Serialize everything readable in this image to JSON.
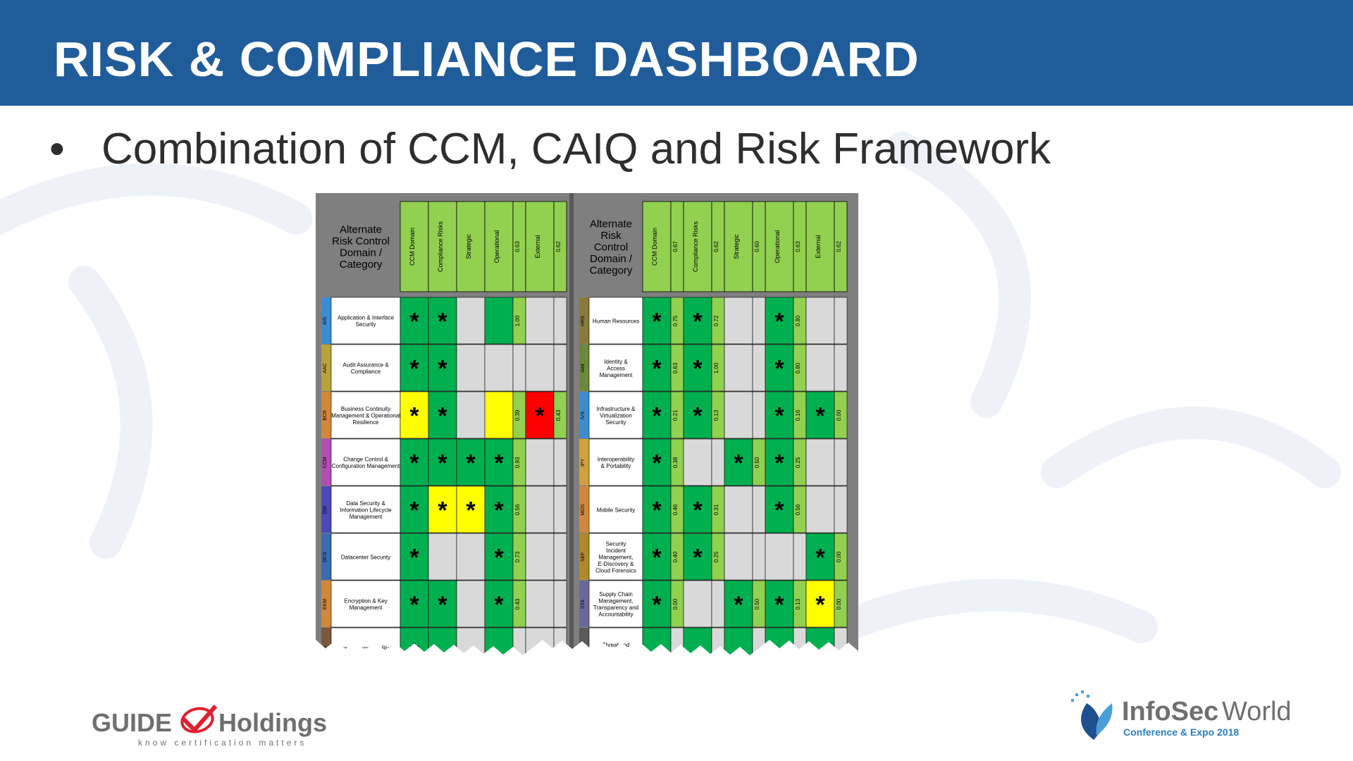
{
  "title": "RISK & COMPLIANCE DASHBOARD",
  "bullet": "Combination of CCM, CAIQ and Risk Framework",
  "matrix": {
    "header_label": "Alternate Risk Control Domain / Category",
    "columns": [
      "CCM Domain",
      "Compliance Risks",
      "Strategic",
      "Operational",
      "External"
    ],
    "header_values_left": [
      "",
      "",
      "",
      "0.63",
      "0.62"
    ],
    "header_values_right": [
      "0.67",
      "0.62",
      "0.60",
      "0.63",
      "0.62"
    ],
    "colors": {
      "green": "#00b050",
      "light_green": "#92d050",
      "yellow": "#ffff00",
      "red": "#ff0000",
      "gray": "#d9d9d9",
      "frame": "#7f7f7f"
    },
    "left": [
      {
        "code": "AIS",
        "code_color": "#3c8dd0",
        "name": "Application & Interface Security",
        "cells": [
          "G*",
          "G*",
          "X",
          "G",
          "X"
        ],
        "score": "1.00"
      },
      {
        "code": "AAC",
        "code_color": "#b9a23c",
        "name": "Audit Assurance & Compliance",
        "cells": [
          "G*",
          "G*",
          "X",
          "X",
          "X"
        ],
        "score": ""
      },
      {
        "code": "BCR",
        "code_color": "#d0883c",
        "name": "Business Continuity Management & Operational Resilience",
        "cells": [
          "Y*",
          "G*",
          "X",
          "Y",
          "R*"
        ],
        "score": "0.39",
        "score2": "0.43"
      },
      {
        "code": "CCM",
        "code_color": "#b04fb0",
        "name": "Change Control & Configuration Management",
        "cells": [
          "G*",
          "G*",
          "G*",
          "G*",
          "X"
        ],
        "score": "0.93"
      },
      {
        "code": "DSI",
        "code_color": "#4a4ab8",
        "name": "Data Security & Information Lifecycle Management",
        "cells": [
          "G*",
          "Y*",
          "Y*",
          "G*",
          "X"
        ],
        "score": "0.56"
      },
      {
        "code": "DCS",
        "code_color": "#3c6ab0",
        "name": "Datacenter Security",
        "cells": [
          "G*",
          "X",
          "X",
          "G*",
          "X"
        ],
        "score": "0.73"
      },
      {
        "code": "EKM",
        "code_color": "#d0883c",
        "name": "Encryption & Key Management",
        "cells": [
          "G*",
          "G*",
          "X",
          "G*",
          "X"
        ],
        "score": "0.43"
      },
      {
        "code": "GRM",
        "code_color": "#7a5a3a",
        "name": "Governance and Risk Management",
        "cells": [
          "G*",
          "G",
          "X",
          "G",
          "X"
        ],
        "score": ""
      }
    ],
    "right": [
      {
        "code": "HRS",
        "code_color": "#8a7a3a",
        "name": "Human Resources",
        "cells": [
          [
            "G*",
            "0.75"
          ],
          [
            "G*",
            "0.72"
          ],
          [
            "X",
            ""
          ],
          [
            "G*",
            "0.80"
          ],
          [
            "X",
            ""
          ]
        ]
      },
      {
        "code": "IAM",
        "code_color": "#6a8a3a",
        "name": "Identity & Access Management",
        "cells": [
          [
            "G*",
            "0.63"
          ],
          [
            "G*",
            "1.00"
          ],
          [
            "X",
            ""
          ],
          [
            "G*",
            "0.80"
          ],
          [
            "X",
            ""
          ]
        ]
      },
      {
        "code": "IVS",
        "code_color": "#3c8dd0",
        "name": "Infrastructure & Virtualization Security",
        "cells": [
          [
            "G*",
            "0.21"
          ],
          [
            "G*",
            "0.13"
          ],
          [
            "X",
            ""
          ],
          [
            "G*",
            "0.16"
          ],
          [
            "G*",
            "0.00"
          ]
        ]
      },
      {
        "code": "IPY",
        "code_color": "#d0a03c",
        "name": "Interoperability & Portability",
        "cells": [
          [
            "G*",
            "0.38"
          ],
          [
            "X",
            ""
          ],
          [
            "G*",
            "0.50"
          ],
          [
            "G*",
            "0.25"
          ],
          [
            "X",
            ""
          ]
        ]
      },
      {
        "code": "MOS",
        "code_color": "#d0883c",
        "name": "Mobile Security",
        "cells": [
          [
            "G*",
            "0.46"
          ],
          [
            "G*",
            "0.31"
          ],
          [
            "X",
            ""
          ],
          [
            "G*",
            "0.56"
          ],
          [
            "X",
            ""
          ]
        ]
      },
      {
        "code": "SEF",
        "code_color": "#b08a2a",
        "name": "Security Incident Management, E-Discovery & Cloud Forensics",
        "cells": [
          [
            "G*",
            "0.40"
          ],
          [
            "G*",
            "0.25"
          ],
          [
            "X",
            ""
          ],
          [
            "X",
            ""
          ],
          [
            "G*",
            "0.00"
          ]
        ]
      },
      {
        "code": "STA",
        "code_color": "#6a6a9a",
        "name": "Supply Chain Management, Transparency and Accountability",
        "cells": [
          [
            "G*",
            "0.00"
          ],
          [
            "X",
            ""
          ],
          [
            "G*",
            "0.50"
          ],
          [
            "G*",
            "0.13"
          ],
          [
            "Y*",
            "0.00"
          ]
        ]
      },
      {
        "code": "TVM",
        "code_color": "#5a5a5a",
        "name": "Threat and Vulnerability Management",
        "cells": [
          [
            "G",
            ""
          ],
          [
            "G",
            ""
          ],
          [
            "G",
            ""
          ],
          [
            "G",
            ""
          ],
          [
            "G",
            ""
          ]
        ]
      }
    ]
  },
  "logos": {
    "left_name": "Guide Holdings",
    "left_part1": "GUIDE",
    "left_part2": "Holdings",
    "left_tagline": "know certification matters",
    "right_name": "InfoSecWorld",
    "right_part1": "InfoSec",
    "right_part2": "World",
    "right_tagline": "Conference & Expo 2018"
  }
}
